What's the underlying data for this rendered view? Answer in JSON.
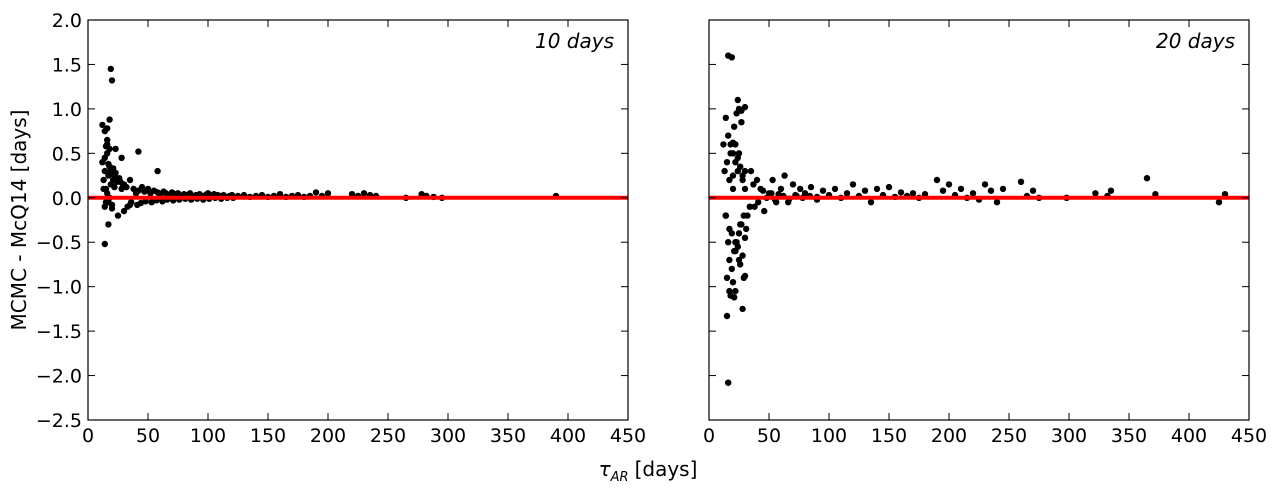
{
  "figure": {
    "ylabel": "MCMC - McQ14 [days]",
    "xlabel_symbol": "τ",
    "xlabel_subscript": "AR",
    "xlabel_unit": "[days]"
  },
  "chart_data": [
    {
      "type": "scatter",
      "annotation": "10 days",
      "xlim": [
        0,
        450
      ],
      "ylim": [
        -2.5,
        2.0
      ],
      "xticks": [
        0,
        50,
        100,
        150,
        200,
        250,
        300,
        350,
        400,
        450
      ],
      "yticks": [
        -2.5,
        -2.0,
        -1.5,
        -1.0,
        -0.5,
        0.0,
        0.5,
        1.0,
        1.5,
        2.0
      ],
      "ytick_labels": [
        "−2.5",
        "−2.0",
        "−1.5",
        "−1.0",
        "−0.5",
        "0.0",
        "0.5",
        "1.0",
        "1.5",
        "2.0"
      ],
      "grid": false,
      "reference_line_y": 0,
      "colors": {
        "points": "#000000",
        "reference_line": "#ff0000"
      },
      "x": [
        12,
        13,
        14,
        15,
        16,
        17,
        18,
        19,
        20,
        21,
        22,
        24,
        26,
        28,
        30,
        15,
        16,
        18,
        20,
        13,
        14,
        17,
        19,
        22,
        25,
        27,
        16,
        18,
        21,
        23,
        29,
        32,
        35,
        38,
        40,
        42,
        45,
        47,
        50,
        52,
        55,
        58,
        60,
        63,
        65,
        68,
        70,
        73,
        75,
        78,
        80,
        83,
        85,
        88,
        90,
        93,
        95,
        98,
        100,
        103,
        105,
        108,
        110,
        113,
        115,
        118,
        120,
        125,
        130,
        135,
        140,
        145,
        150,
        155,
        160,
        165,
        170,
        175,
        180,
        185,
        190,
        195,
        200,
        220,
        225,
        230,
        235,
        240,
        265,
        278,
        282,
        288,
        295,
        390,
        33,
        36,
        41,
        44,
        48,
        53,
        57,
        62,
        66,
        71,
        76,
        81,
        86,
        91,
        96,
        101,
        106,
        111,
        116,
        121,
        14,
        17,
        20,
        25,
        30,
        35,
        14,
        16,
        18,
        19,
        20,
        23,
        28,
        42,
        58,
        12,
        15,
        16,
        14,
        17
      ],
      "y": [
        0.4,
        0.2,
        0.3,
        0.1,
        0.5,
        0.25,
        0.35,
        0.15,
        0.28,
        0.2,
        0.12,
        0.18,
        0.22,
        0.1,
        0.15,
        -0.05,
        0.05,
        0.0,
        -0.08,
        0.1,
        0.45,
        0.38,
        0.3,
        0.25,
        0.2,
        0.18,
        0.6,
        0.55,
        0.33,
        0.28,
        0.15,
        0.12,
        0.2,
        0.1,
        0.05,
        0.08,
        0.12,
        0.07,
        0.1,
        0.05,
        0.08,
        0.06,
        0.04,
        0.07,
        0.05,
        0.03,
        0.06,
        0.04,
        0.05,
        0.02,
        0.04,
        0.03,
        0.05,
        0.02,
        0.03,
        0.04,
        0.02,
        0.03,
        0.05,
        0.02,
        0.04,
        0.03,
        0.02,
        0.03,
        0.01,
        0.02,
        0.03,
        0.02,
        0.03,
        0.01,
        0.02,
        0.03,
        0.01,
        0.02,
        0.04,
        0.01,
        0.02,
        0.03,
        0.01,
        0.02,
        0.06,
        0.02,
        0.05,
        0.04,
        0.02,
        0.05,
        0.03,
        0.02,
        0.0,
        0.04,
        0.02,
        0.01,
        0.0,
        0.02,
        -0.1,
        -0.05,
        -0.08,
        -0.06,
        -0.04,
        -0.05,
        -0.03,
        -0.04,
        -0.02,
        -0.03,
        -0.02,
        -0.01,
        -0.02,
        -0.01,
        -0.02,
        -0.01,
        0.0,
        -0.01,
        0.0,
        0.0,
        -0.1,
        -0.05,
        -0.12,
        -0.2,
        -0.15,
        -0.08,
        0.75,
        0.78,
        0.88,
        1.45,
        1.32,
        0.55,
        0.45,
        0.52,
        0.3,
        0.82,
        0.58,
        0.65,
        -0.52,
        -0.3
      ]
    },
    {
      "type": "scatter",
      "annotation": "20 days",
      "xlim": [
        0,
        450
      ],
      "ylim": [
        -2.5,
        2.0
      ],
      "xticks": [
        0,
        50,
        100,
        150,
        200,
        250,
        300,
        350,
        400,
        450
      ],
      "yticks": [
        -2.5,
        -2.0,
        -1.5,
        -1.0,
        -0.5,
        0.0,
        0.5,
        1.0,
        1.5,
        2.0
      ],
      "grid": false,
      "reference_line_y": 0,
      "colors": {
        "points": "#000000",
        "reference_line": "#ff0000"
      },
      "x": [
        12,
        13,
        14,
        15,
        16,
        17,
        18,
        19,
        20,
        21,
        22,
        24,
        26,
        28,
        30,
        32,
        35,
        38,
        40,
        43,
        46,
        50,
        53,
        56,
        60,
        63,
        66,
        70,
        73,
        76,
        80,
        85,
        90,
        95,
        100,
        105,
        110,
        115,
        120,
        125,
        130,
        135,
        140,
        145,
        150,
        155,
        160,
        165,
        170,
        175,
        180,
        190,
        195,
        200,
        205,
        210,
        215,
        220,
        225,
        230,
        235,
        240,
        245,
        260,
        265,
        270,
        275,
        298,
        322,
        332,
        335,
        365,
        372,
        425,
        430,
        15,
        17,
        19,
        21,
        23,
        25,
        27,
        29,
        31,
        14,
        16,
        18,
        20,
        22,
        24,
        26,
        28,
        30,
        34,
        37,
        41,
        45,
        48,
        52,
        55,
        58,
        62,
        67,
        72,
        78,
        84,
        90,
        18,
        20,
        22,
        24,
        26,
        28,
        30,
        16,
        19,
        23,
        27,
        17,
        21,
        25,
        29,
        15,
        22,
        24,
        30,
        14,
        17,
        20,
        28,
        25,
        27,
        30,
        22,
        25,
        20,
        16
      ],
      "y": [
        0.6,
        0.3,
        -0.2,
        0.4,
        -0.5,
        0.2,
        0.5,
        -0.4,
        0.1,
        0.8,
        -0.6,
        0.3,
        -0.3,
        0.2,
        0.1,
        -0.2,
        0.3,
        -0.1,
        0.2,
        0.1,
        -0.15,
        0.05,
        0.2,
        -0.05,
        0.1,
        0.25,
        -0.05,
        0.15,
        0.02,
        0.1,
        0.05,
        0.12,
        -0.02,
        0.08,
        0.03,
        0.1,
        0.0,
        0.05,
        0.15,
        0.02,
        0.08,
        -0.05,
        0.1,
        0.03,
        0.12,
        0.01,
        0.06,
        0.02,
        0.05,
        0.0,
        0.04,
        0.2,
        0.08,
        0.15,
        0.03,
        0.1,
        0.0,
        0.05,
        -0.02,
        0.15,
        0.08,
        -0.05,
        0.1,
        0.18,
        0.02,
        0.08,
        0.0,
        0.0,
        0.05,
        0.02,
        0.08,
        0.22,
        0.04,
        -0.05,
        0.04,
        -0.9,
        -0.7,
        -0.8,
        -0.6,
        -0.5,
        -0.4,
        -0.3,
        -0.2,
        -0.35,
        0.9,
        0.7,
        0.6,
        0.5,
        0.4,
        0.45,
        0.35,
        0.25,
        0.3,
        -0.1,
        0.15,
        -0.05,
        0.08,
        0.0,
        0.05,
        -0.02,
        0.04,
        0.02,
        -0.01,
        0.03,
        0.0,
        0.02,
        0.01,
        -1.1,
        -0.95,
        -1.05,
        -0.55,
        -0.75,
        -0.65,
        -0.45,
        1.6,
        1.58,
        0.95,
        0.85,
        -1.05,
        -1.12,
        -0.7,
        -0.9,
        -1.33,
        0.6,
        1.1,
        1.02,
        -0.2,
        -0.35,
        0.25,
        -1.25,
        1.0,
        0.98,
        -0.88,
        -0.5,
        0.5,
        0.62,
        -2.08
      ]
    }
  ]
}
